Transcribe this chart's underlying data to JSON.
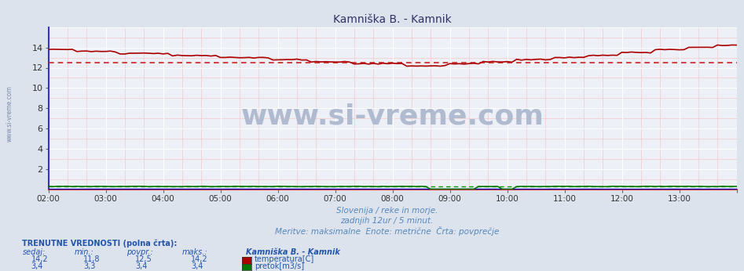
{
  "title": "Kamniška B. - Kamnik",
  "bg_color": "#dde3ed",
  "plot_bg_color": "#eef0f8",
  "grid_major_color": "#ffffff",
  "grid_minor_color": "#f5c8c8",
  "x_start": 0,
  "x_end": 144,
  "x_ticks": [
    0,
    12,
    24,
    36,
    48,
    60,
    72,
    84,
    96,
    108,
    120,
    132,
    144
  ],
  "x_tick_labels": [
    "02:00",
    "03:00",
    "04:00",
    "05:00",
    "06:00",
    "07:00",
    "08:00",
    "09:00",
    "10:00",
    "11:00",
    "12:00",
    "13:00",
    ""
  ],
  "y_min": 0,
  "y_max": 16,
  "y_ticks": [
    2,
    4,
    6,
    8,
    10,
    12,
    14
  ],
  "y_tick_labels": [
    "2",
    "4",
    "6",
    "8",
    "10",
    "12",
    "14"
  ],
  "temp_color": "#aa0000",
  "flow_color": "#007700",
  "height_color": "#0000bb",
  "avg_temp_color": "#cc2222",
  "avg_flow_color": "#009900",
  "watermark_text": "www.si-vreme.com",
  "watermark_color": "#b0bbd0",
  "sub_text1": "Slovenija / reke in morje.",
  "sub_text2": "zadnjih 12ur / 5 minut.",
  "sub_text3": "Meritve: maksimalne  Enote: metrične  Črta: povprečje",
  "sub_text_color": "#5588bb",
  "legend_title": "Kamniška B. - Kamnik",
  "legend_label1": "temperatura[C]",
  "legend_label2": "pretok[m3/s]",
  "bottom_label_color": "#2255aa",
  "temp_avg": 12.5,
  "flow_avg": 0.3,
  "left_label": "www.si-vreme.com",
  "left_label_color": "#7788aa",
  "left_axis_color": "#3333cc",
  "bottom_axis_color": "#cc3333"
}
